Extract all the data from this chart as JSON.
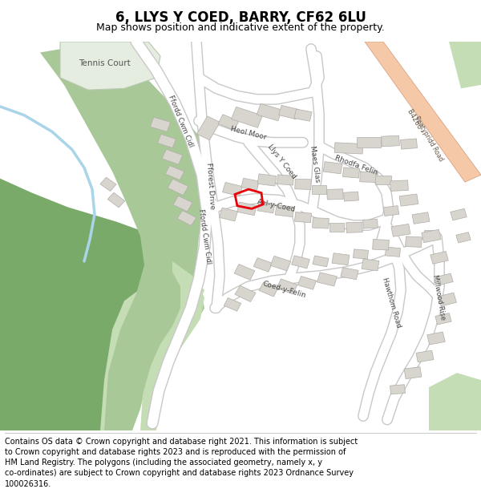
{
  "title": "6, LLYS Y COED, BARRY, CF62 6LU",
  "subtitle": "Map shows position and indicative extent of the property.",
  "footer": "Contains OS data © Crown copyright and database right 2021. This information is subject\nto Crown copyright and database rights 2023 and is reproduced with the permission of\nHM Land Registry. The polygons (including the associated geometry, namely x, y\nco-ordinates) are subject to Crown copyright and database rights 2023 Ordnance Survey\n100026316.",
  "bg_map_color": "#f0ede6",
  "road_color": "#ffffff",
  "road_outline_color": "#c8c8c8",
  "building_color": "#d8d5ce",
  "building_outline_color": "#b0ada8",
  "green_light": "#c5ddb5",
  "green_dark": "#7aaa6a",
  "green_med": "#a8c898",
  "water_color": "#aad4e8",
  "highlight_color": "#e8000a",
  "orange_road_color": "#f5c8a8",
  "orange_road_outline": "#d49878",
  "road_label_color": "#444444",
  "title_fontsize": 12,
  "subtitle_fontsize": 9,
  "footer_fontsize": 7
}
